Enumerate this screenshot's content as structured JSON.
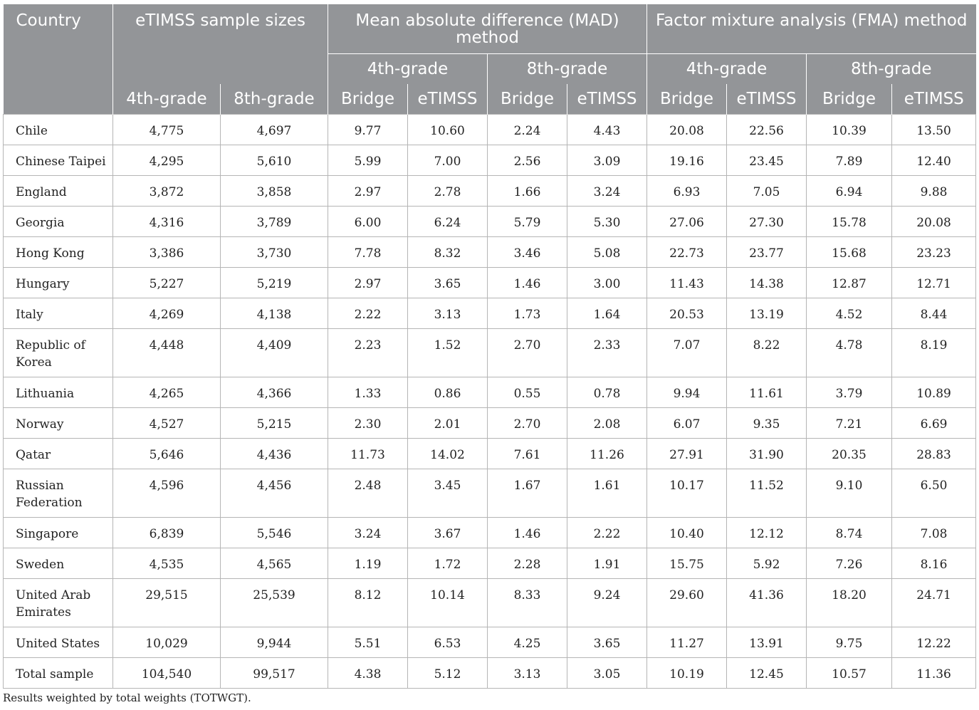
{
  "header": {
    "country": "Country",
    "sample_sizes": "eTIMSS sample sizes",
    "mad": "Mean absolute difference (MAD) method",
    "fma": "Factor mixture analysis (FMA) method",
    "grade4": "4th-grade",
    "grade8": "8th-grade",
    "bridge": "Bridge",
    "etimss": "eTIMSS"
  },
  "rows": [
    {
      "country": "Chile",
      "n4": "4,775",
      "n8": "4,697",
      "mad4b": "9.77",
      "mad4e": "10.60",
      "mad8b": "2.24",
      "mad8e": "4.43",
      "fma4b": "20.08",
      "fma4e": "22.56",
      "fma8b": "10.39",
      "fma8e": "13.50"
    },
    {
      "country": "Chinese Taipei",
      "n4": "4,295",
      "n8": "5,610",
      "mad4b": "5.99",
      "mad4e": "7.00",
      "mad8b": "2.56",
      "mad8e": "3.09",
      "fma4b": "19.16",
      "fma4e": "23.45",
      "fma8b": "7.89",
      "fma8e": "12.40"
    },
    {
      "country": "England",
      "n4": "3,872",
      "n8": "3,858",
      "mad4b": "2.97",
      "mad4e": "2.78",
      "mad8b": "1.66",
      "mad8e": "3.24",
      "fma4b": "6.93",
      "fma4e": "7.05",
      "fma8b": "6.94",
      "fma8e": "9.88"
    },
    {
      "country": "Georgia",
      "n4": "4,316",
      "n8": "3,789",
      "mad4b": "6.00",
      "mad4e": "6.24",
      "mad8b": "5.79",
      "mad8e": "5.30",
      "fma4b": "27.06",
      "fma4e": "27.30",
      "fma8b": "15.78",
      "fma8e": "20.08"
    },
    {
      "country": "Hong Kong",
      "n4": "3,386",
      "n8": "3,730",
      "mad4b": "7.78",
      "mad4e": "8.32",
      "mad8b": "3.46",
      "mad8e": "5.08",
      "fma4b": "22.73",
      "fma4e": "23.77",
      "fma8b": "15.68",
      "fma8e": "23.23"
    },
    {
      "country": "Hungary",
      "n4": "5,227",
      "n8": "5,219",
      "mad4b": "2.97",
      "mad4e": "3.65",
      "mad8b": "1.46",
      "mad8e": "3.00",
      "fma4b": "11.43",
      "fma4e": "14.38",
      "fma8b": "12.87",
      "fma8e": "12.71"
    },
    {
      "country": "Italy",
      "n4": "4,269",
      "n8": "4,138",
      "mad4b": "2.22",
      "mad4e": "3.13",
      "mad8b": "1.73",
      "mad8e": "1.64",
      "fma4b": "20.53",
      "fma4e": "13.19",
      "fma8b": "4.52",
      "fma8e": "8.44"
    },
    {
      "country": "Republic of Korea",
      "n4": "4,448",
      "n8": "4,409",
      "mad4b": "2.23",
      "mad4e": "1.52",
      "mad8b": "2.70",
      "mad8e": "2.33",
      "fma4b": "7.07",
      "fma4e": "8.22",
      "fma8b": "4.78",
      "fma8e": "8.19",
      "tall": true
    },
    {
      "country": "Lithuania",
      "n4": "4,265",
      "n8": "4,366",
      "mad4b": "1.33",
      "mad4e": "0.86",
      "mad8b": "0.55",
      "mad8e": "0.78",
      "fma4b": "9.94",
      "fma4e": "11.61",
      "fma8b": "3.79",
      "fma8e": "10.89"
    },
    {
      "country": "Norway",
      "n4": "4,527",
      "n8": "5,215",
      "mad4b": "2.30",
      "mad4e": "2.01",
      "mad8b": "2.70",
      "mad8e": "2.08",
      "fma4b": "6.07",
      "fma4e": "9.35",
      "fma8b": "7.21",
      "fma8e": "6.69"
    },
    {
      "country": "Qatar",
      "n4": "5,646",
      "n8": "4,436",
      "mad4b": "11.73",
      "mad4e": "14.02",
      "mad8b": "7.61",
      "mad8e": "11.26",
      "fma4b": "27.91",
      "fma4e": "31.90",
      "fma8b": "20.35",
      "fma8e": "28.83"
    },
    {
      "country": "Russian Federation",
      "n4": "4,596",
      "n8": "4,456",
      "mad4b": "2.48",
      "mad4e": "3.45",
      "mad8b": "1.67",
      "mad8e": "1.61",
      "fma4b": "10.17",
      "fma4e": "11.52",
      "fma8b": "9.10",
      "fma8e": "6.50",
      "tall": true
    },
    {
      "country": "Singapore",
      "n4": "6,839",
      "n8": "5,546",
      "mad4b": "3.24",
      "mad4e": "3.67",
      "mad8b": "1.46",
      "mad8e": "2.22",
      "fma4b": "10.40",
      "fma4e": "12.12",
      "fma8b": "8.74",
      "fma8e": "7.08"
    },
    {
      "country": "Sweden",
      "n4": "4,535",
      "n8": "4,565",
      "mad4b": "1.19",
      "mad4e": "1.72",
      "mad8b": "2.28",
      "mad8e": "1.91",
      "fma4b": "15.75",
      "fma4e": "5.92",
      "fma8b": "7.26",
      "fma8e": "8.16"
    },
    {
      "country": "United Arab Emirates",
      "n4": "29,515",
      "n8": "25,539",
      "mad4b": "8.12",
      "mad4e": "10.14",
      "mad8b": "8.33",
      "mad8e": "9.24",
      "fma4b": "29.60",
      "fma4e": "41.36",
      "fma8b": "18.20",
      "fma8e": "24.71",
      "tall": true
    },
    {
      "country": "United States",
      "n4": "10,029",
      "n8": "9,944",
      "mad4b": "5.51",
      "mad4e": "6.53",
      "mad8b": "4.25",
      "mad8e": "3.65",
      "fma4b": "11.27",
      "fma4e": "13.91",
      "fma8b": "9.75",
      "fma8e": "12.22"
    },
    {
      "country": "Total sample",
      "n4": "104,540",
      "n8": "99,517",
      "mad4b": "4.38",
      "mad4e": "5.12",
      "mad8b": "3.13",
      "mad8e": "3.05",
      "fma4b": "10.19",
      "fma4e": "12.45",
      "fma8b": "10.57",
      "fma8e": "11.36"
    }
  ],
  "footnote": "Results weighted by total weights (TOTWGT)."
}
